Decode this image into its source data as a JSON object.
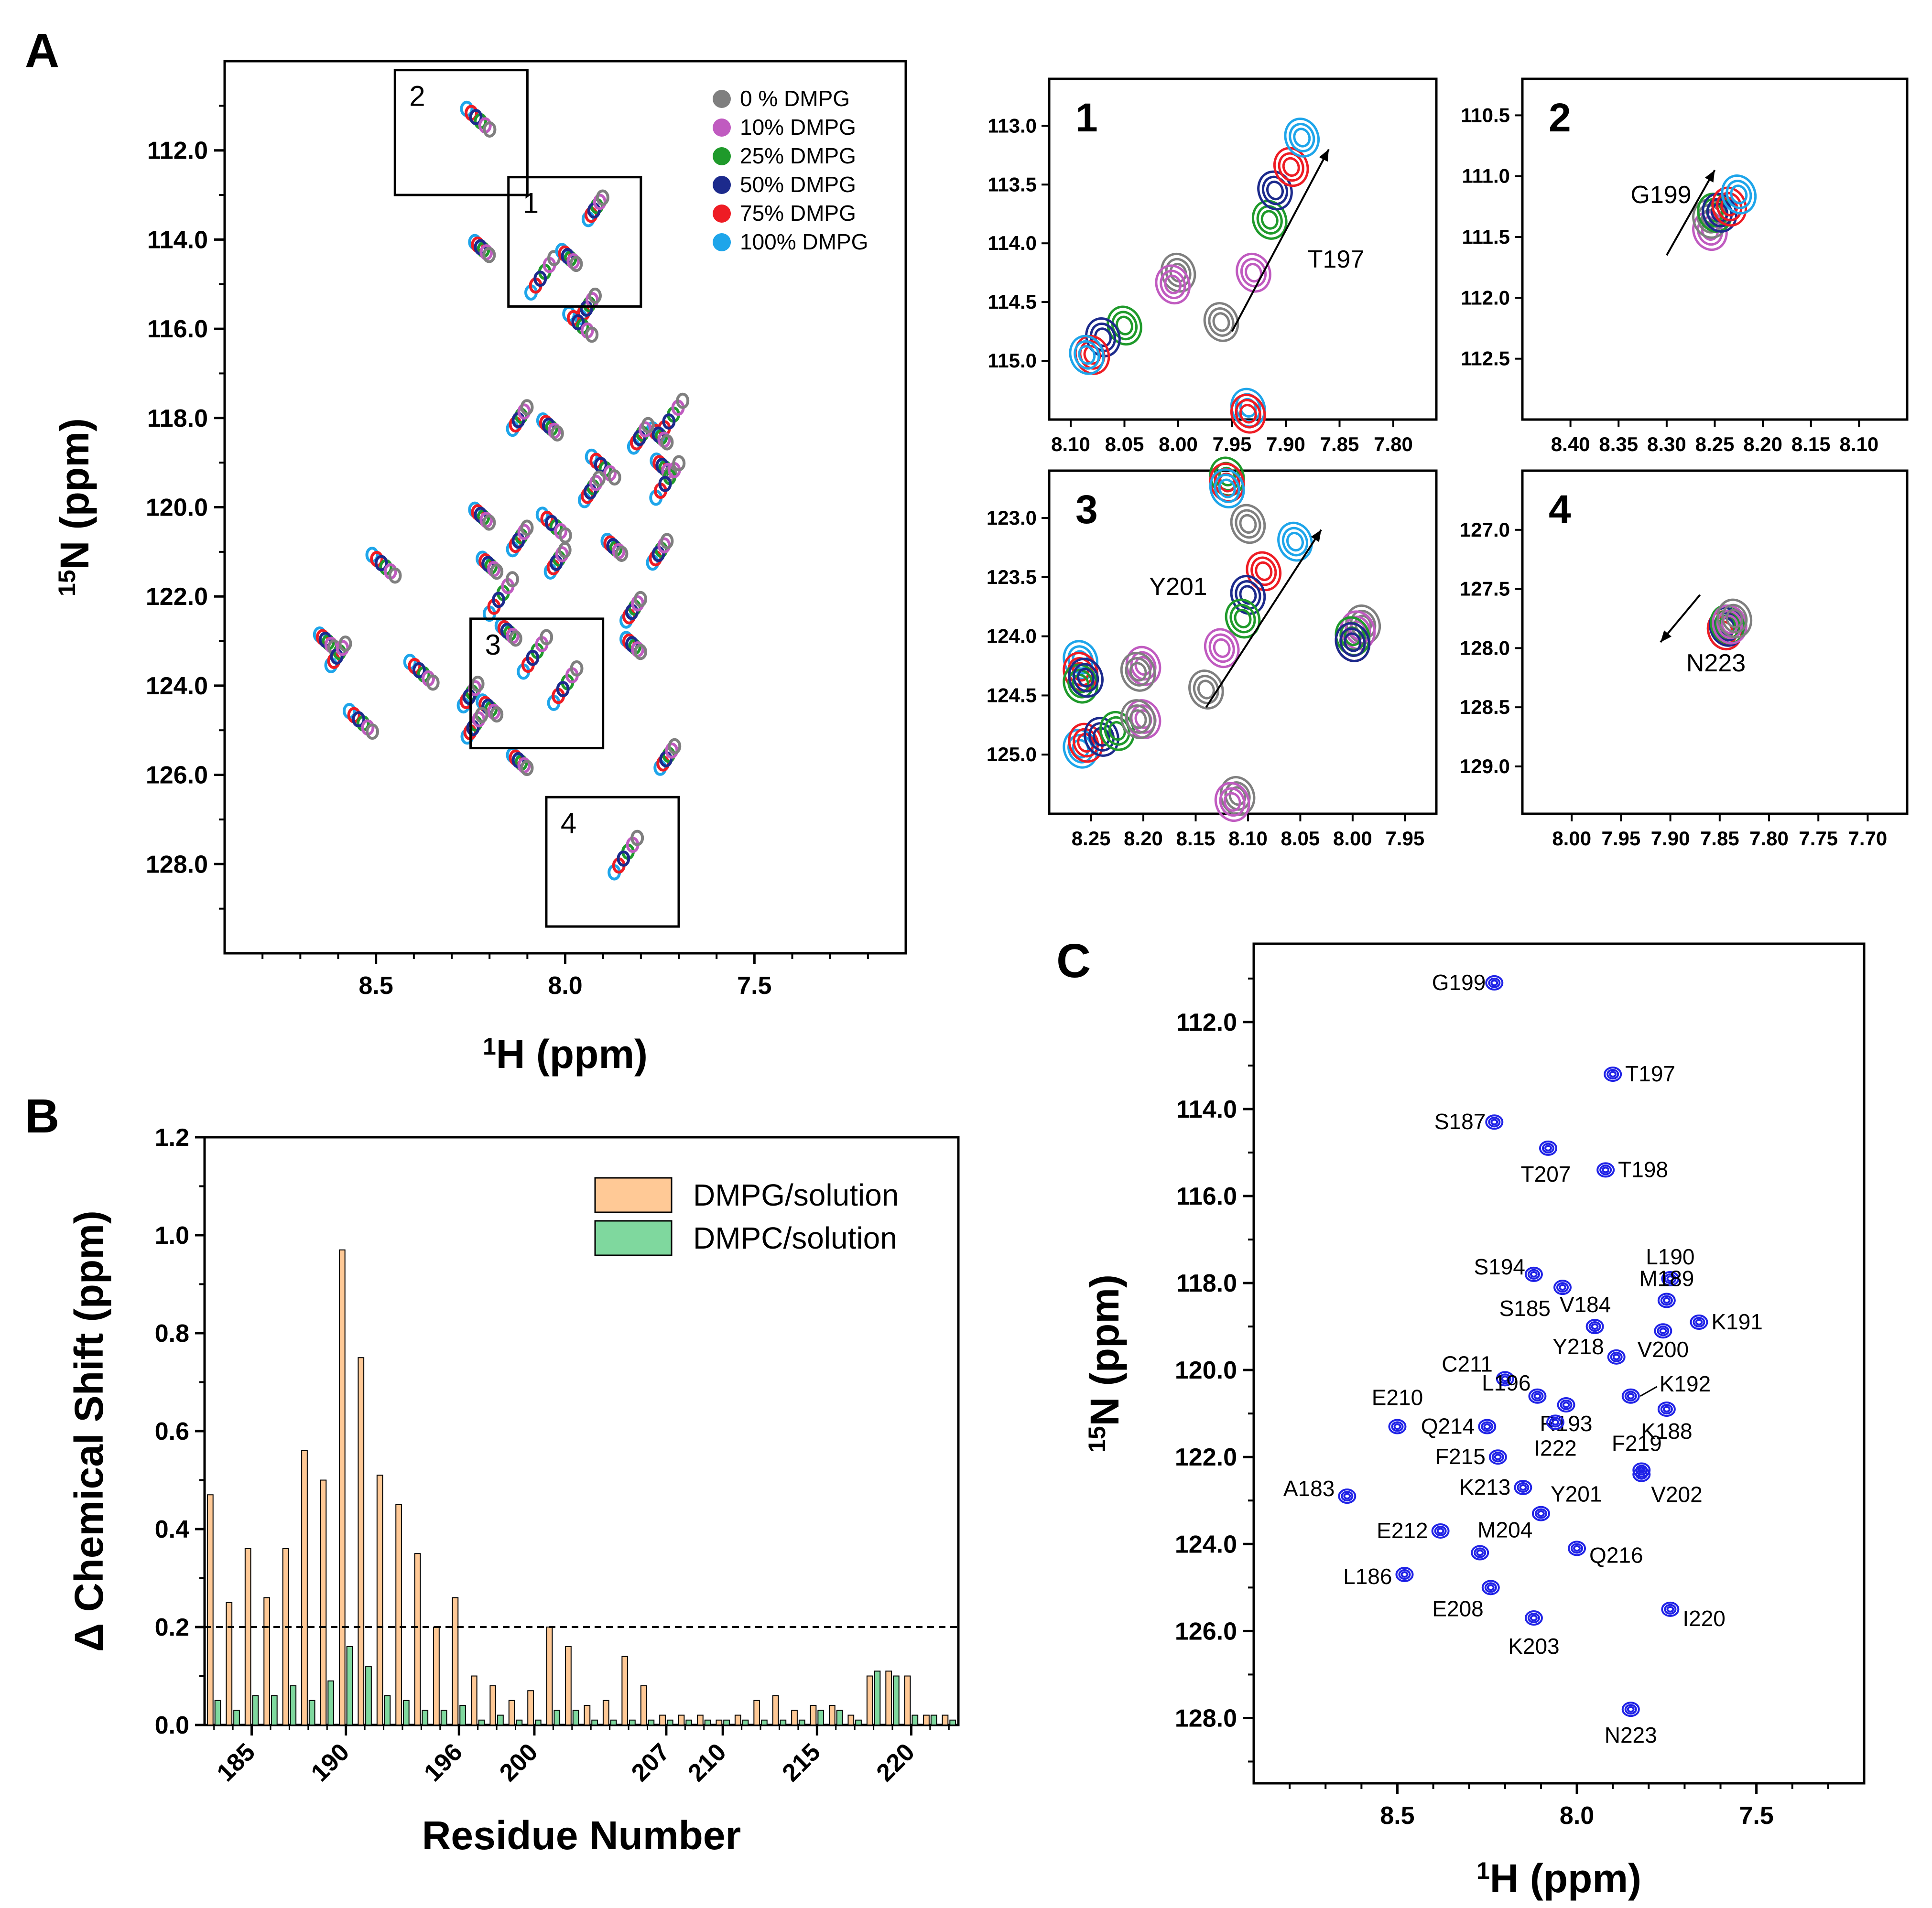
{
  "chart_data": [
    {
      "panel": "A",
      "type": "scatter",
      "subtype": "2D NMR HSQC overlay",
      "xlabel": "1H (ppm)",
      "ylabel": "15N (ppm)",
      "xlim": [
        8.9,
        7.1
      ],
      "ylim": [
        130.0,
        110.0
      ],
      "xticks": [
        "8.5",
        "8.0",
        "7.5"
      ],
      "yticks": [
        "112.0",
        "114.0",
        "116.0",
        "118.0",
        "120.0",
        "122.0",
        "124.0",
        "126.0",
        "128.0"
      ],
      "legend": [
        {
          "label": "0 %  DMPG",
          "color": "#7f7f7f"
        },
        {
          "label": "10%  DMPG",
          "color": "#c05bc0"
        },
        {
          "label": "25%  DMPG",
          "color": "#1f9a2b"
        },
        {
          "label": "50%  DMPG",
          "color": "#1c2a8c"
        },
        {
          "label": "75%  DMPG",
          "color": "#ee1c24"
        },
        {
          "label": "100% DMPG",
          "color": "#1ea5ea"
        }
      ],
      "boxes": [
        {
          "label": "1",
          "x": [
            8.15,
            7.8
          ],
          "y": [
            112.6,
            115.5
          ]
        },
        {
          "label": "2",
          "x": [
            8.45,
            8.1
          ],
          "y": [
            110.2,
            113.0
          ]
        },
        {
          "label": "3",
          "x": [
            8.25,
            7.9
          ],
          "y": [
            122.5,
            125.4
          ]
        },
        {
          "label": "4",
          "x": [
            8.05,
            7.7
          ],
          "y": [
            126.5,
            129.4
          ]
        }
      ],
      "peaks": [
        {
          "x": 8.23,
          "y": 111.3
        },
        {
          "x": 7.92,
          "y": 113.3
        },
        {
          "x": 8.22,
          "y": 114.2
        },
        {
          "x": 8.06,
          "y": 114.8
        },
        {
          "x": 7.99,
          "y": 114.4
        },
        {
          "x": 7.94,
          "y": 115.5
        },
        {
          "x": 7.96,
          "y": 115.9
        },
        {
          "x": 8.12,
          "y": 118.0
        },
        {
          "x": 8.04,
          "y": 118.2
        },
        {
          "x": 7.72,
          "y": 118.0
        },
        {
          "x": 7.75,
          "y": 118.4
        },
        {
          "x": 7.8,
          "y": 118.4
        },
        {
          "x": 7.9,
          "y": 119.1
        },
        {
          "x": 7.93,
          "y": 119.6
        },
        {
          "x": 7.74,
          "y": 119.1
        },
        {
          "x": 7.73,
          "y": 119.4
        },
        {
          "x": 8.22,
          "y": 120.2
        },
        {
          "x": 8.12,
          "y": 120.7
        },
        {
          "x": 8.03,
          "y": 120.4
        },
        {
          "x": 8.02,
          "y": 121.2
        },
        {
          "x": 8.2,
          "y": 121.3
        },
        {
          "x": 8.17,
          "y": 122.0
        },
        {
          "x": 7.87,
          "y": 120.9
        },
        {
          "x": 7.75,
          "y": 121.0
        },
        {
          "x": 8.48,
          "y": 121.3
        },
        {
          "x": 7.82,
          "y": 122.3
        },
        {
          "x": 8.15,
          "y": 122.8
        },
        {
          "x": 8.08,
          "y": 123.3
        },
        {
          "x": 8.63,
          "y": 123.0
        },
        {
          "x": 8.6,
          "y": 123.3
        },
        {
          "x": 8.38,
          "y": 123.7
        },
        {
          "x": 8.25,
          "y": 124.2
        },
        {
          "x": 8.2,
          "y": 124.5
        },
        {
          "x": 8.0,
          "y": 124.0
        },
        {
          "x": 8.12,
          "y": 125.7
        },
        {
          "x": 8.24,
          "y": 124.9
        },
        {
          "x": 8.54,
          "y": 124.8
        },
        {
          "x": 7.73,
          "y": 125.6
        },
        {
          "x": 7.82,
          "y": 123.1
        },
        {
          "x": 7.84,
          "y": 127.8
        }
      ]
    },
    {
      "panel": "A1",
      "type": "scatter",
      "title": "1",
      "xlim": [
        8.12,
        7.76
      ],
      "ylim": [
        115.5,
        112.6
      ],
      "xticks": [
        "8.10",
        "8.05",
        "8.00",
        "7.95",
        "7.90",
        "7.85",
        "7.80"
      ],
      "yticks": [
        "113.0",
        "113.5",
        "114.0",
        "114.5",
        "115.0"
      ],
      "annotation": "T197",
      "shift_direction": "up-right"
    },
    {
      "panel": "A2",
      "type": "scatter",
      "title": "2",
      "xlim": [
        8.45,
        8.05
      ],
      "ylim": [
        113.0,
        110.2
      ],
      "xticks": [
        "8.40",
        "8.35",
        "8.30",
        "8.25",
        "8.20",
        "8.15",
        "8.10"
      ],
      "yticks": [
        "110.5",
        "111.0",
        "111.5",
        "112.0",
        "112.5"
      ],
      "annotation": "G199",
      "shift_direction": "up-right"
    },
    {
      "panel": "A3",
      "type": "scatter",
      "title": "3",
      "xlim": [
        8.29,
        7.92
      ],
      "ylim": [
        125.5,
        122.6
      ],
      "xticks": [
        "8.25",
        "8.20",
        "8.15",
        "8.10",
        "8.05",
        "8.00",
        "7.95"
      ],
      "yticks": [
        "123.0",
        "123.5",
        "124.0",
        "124.5",
        "125.0"
      ],
      "annotation": "Y201",
      "shift_direction": "up-right"
    },
    {
      "panel": "A4",
      "type": "scatter",
      "title": "4",
      "xlim": [
        8.05,
        7.66
      ],
      "ylim": [
        129.4,
        126.5
      ],
      "xticks": [
        "8.00",
        "7.95",
        "7.90",
        "7.85",
        "7.80",
        "7.75",
        "7.70"
      ],
      "yticks": [
        "127.0",
        "127.5",
        "128.0",
        "128.5",
        "129.0"
      ],
      "annotation": "N223",
      "shift_direction": "down-left"
    },
    {
      "panel": "B",
      "type": "bar",
      "xlabel": "Residue Number",
      "ylabel": "Δ Chemical Shift (ppm)",
      "ylim": [
        0.0,
        1.2
      ],
      "yticks": [
        "0.0",
        "0.2",
        "0.4",
        "0.6",
        "0.8",
        "1.0",
        "1.2"
      ],
      "xticks": [
        "185",
        "190",
        "196",
        "200",
        "207",
        "210",
        "215",
        "220"
      ],
      "threshold": 0.2,
      "categories": [
        183,
        184,
        185,
        186,
        187,
        188,
        189,
        190,
        191,
        192,
        193,
        194,
        195,
        196,
        197,
        198,
        199,
        200,
        201,
        202,
        203,
        204,
        205,
        206,
        207,
        208,
        209,
        210,
        211,
        212,
        213,
        214,
        215,
        216,
        217,
        218,
        219,
        220,
        221,
        222
      ],
      "series": [
        {
          "name": "DMPG/solution",
          "color": "#ffc996",
          "values": [
            0.47,
            0.25,
            0.36,
            0.26,
            0.36,
            0.56,
            0.5,
            0.97,
            0.75,
            0.51,
            0.45,
            0.35,
            0.2,
            0.26,
            0.1,
            0.08,
            0.05,
            0.07,
            0.2,
            0.16,
            0.04,
            0.05,
            0.14,
            0.08,
            0.02,
            0.02,
            0.02,
            0.01,
            0.02,
            0.05,
            0.06,
            0.03,
            0.04,
            0.04,
            0.02,
            0.1,
            0.11,
            0.1,
            0.02,
            0.02
          ]
        },
        {
          "name": "DMPC/solution",
          "color": "#7fd89e",
          "values": [
            0.05,
            0.03,
            0.06,
            0.06,
            0.08,
            0.05,
            0.09,
            0.16,
            0.12,
            0.06,
            0.05,
            0.03,
            0.03,
            0.04,
            0.01,
            0.02,
            0.01,
            0.01,
            0.03,
            0.03,
            0.01,
            0.01,
            0.01,
            0.01,
            0.01,
            0.01,
            0.01,
            0.01,
            0.01,
            0.01,
            0.01,
            0.01,
            0.03,
            0.03,
            0.01,
            0.11,
            0.1,
            0.02,
            0.02,
            0.01
          ]
        }
      ]
    },
    {
      "panel": "C",
      "type": "scatter",
      "subtype": "2D NMR HSQC with residue assignments",
      "xlabel": "1H (ppm)",
      "ylabel": "15N (ppm)",
      "xlim": [
        8.9,
        7.2
      ],
      "ylim": [
        129.5,
        110.2
      ],
      "xticks": [
        "8.5",
        "8.0",
        "7.5"
      ],
      "yticks": [
        "112.0",
        "114.0",
        "116.0",
        "118.0",
        "120.0",
        "122.0",
        "124.0",
        "126.0",
        "128.0"
      ],
      "color": "#1f22e6",
      "peaks": [
        {
          "label": "G199",
          "x": 8.23,
          "y": 111.1
        },
        {
          "label": "T197",
          "x": 7.9,
          "y": 113.2
        },
        {
          "label": "S187",
          "x": 8.23,
          "y": 114.3
        },
        {
          "label": "T207",
          "x": 8.08,
          "y": 114.9
        },
        {
          "label": "T198",
          "x": 7.92,
          "y": 115.4
        },
        {
          "label": "S194",
          "x": 8.12,
          "y": 117.8
        },
        {
          "label": "L190",
          "x": 7.74,
          "y": 117.9
        },
        {
          "label": "S185",
          "x": 8.04,
          "y": 118.1
        },
        {
          "label": "M189",
          "x": 7.75,
          "y": 118.4
        },
        {
          "label": "V184",
          "x": 7.95,
          "y": 119.0
        },
        {
          "label": "K191",
          "x": 7.66,
          "y": 118.9
        },
        {
          "label": "Y218",
          "x": 7.89,
          "y": 119.7
        },
        {
          "label": "V200",
          "x": 7.76,
          "y": 119.1
        },
        {
          "label": "C211",
          "x": 8.2,
          "y": 120.2
        },
        {
          "label": "L196",
          "x": 8.11,
          "y": 120.6
        },
        {
          "label": "R193",
          "x": 8.03,
          "y": 120.8
        },
        {
          "label": "K192",
          "x": 7.85,
          "y": 120.6
        },
        {
          "label": "Q214",
          "x": 8.25,
          "y": 121.3
        },
        {
          "label": "I222",
          "x": 8.06,
          "y": 121.2
        },
        {
          "label": "K188",
          "x": 7.75,
          "y": 120.9
        },
        {
          "label": "E210",
          "x": 8.5,
          "y": 121.3
        },
        {
          "label": "F215",
          "x": 8.22,
          "y": 122.0
        },
        {
          "label": "F219",
          "x": 7.82,
          "y": 122.3
        },
        {
          "label": "A183",
          "x": 8.64,
          "y": 122.9
        },
        {
          "label": "K213",
          "x": 8.15,
          "y": 122.7
        },
        {
          "label": "Y201",
          "x": 8.1,
          "y": 123.3
        },
        {
          "label": "V202",
          "x": 7.82,
          "y": 122.4
        },
        {
          "label": "E212",
          "x": 8.38,
          "y": 123.7
        },
        {
          "label": "M204",
          "x": 8.27,
          "y": 124.2
        },
        {
          "label": "Q216",
          "x": 8.0,
          "y": 124.1
        },
        {
          "label": "L186",
          "x": 8.48,
          "y": 124.7
        },
        {
          "label": "E208",
          "x": 8.24,
          "y": 125.0
        },
        {
          "label": "I220",
          "x": 7.74,
          "y": 125.5
        },
        {
          "label": "K203",
          "x": 8.12,
          "y": 125.7
        },
        {
          "label": "N223",
          "x": 7.85,
          "y": 127.8
        }
      ]
    }
  ]
}
